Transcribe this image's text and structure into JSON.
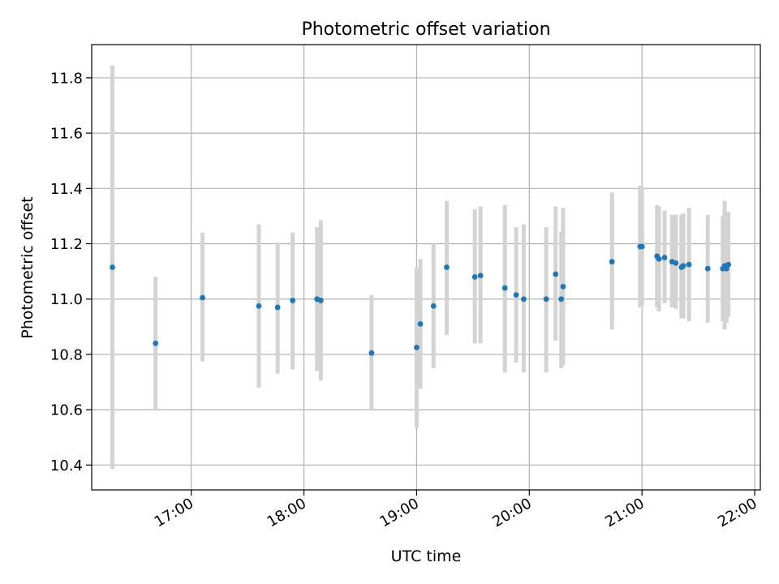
{
  "chart_data": {
    "type": "scatter",
    "title": "Photometric offset variation",
    "xlabel": "UTC time",
    "ylabel": "Photometric offset",
    "x_ticks": [
      "17:00",
      "18:00",
      "19:00",
      "20:00",
      "21:00",
      "22:00"
    ],
    "y_ticks": [
      "10.4",
      "10.6",
      "10.8",
      "11.0",
      "11.2",
      "11.4",
      "11.6",
      "11.8"
    ],
    "xlim": [
      "16:07",
      "22:03"
    ],
    "ylim": [
      10.31,
      11.92
    ],
    "grid": true,
    "point_color": "#1f77b4",
    "errorbar_color": "#d3d3d3",
    "points": [
      {
        "x": "16:18",
        "y": 11.115,
        "yerr_low": 10.385,
        "yerr_high": 11.845
      },
      {
        "x": "16:41",
        "y": 10.84,
        "yerr_low": 10.6,
        "yerr_high": 11.08
      },
      {
        "x": "17:06",
        "y": 11.005,
        "yerr_low": 10.775,
        "yerr_high": 11.24
      },
      {
        "x": "17:36",
        "y": 10.975,
        "yerr_low": 10.68,
        "yerr_high": 11.27
      },
      {
        "x": "17:46",
        "y": 10.97,
        "yerr_low": 10.73,
        "yerr_high": 11.205
      },
      {
        "x": "17:54",
        "y": 10.995,
        "yerr_low": 10.745,
        "yerr_high": 11.24
      },
      {
        "x": "18:07",
        "y": 11.0,
        "yerr_low": 10.74,
        "yerr_high": 11.26
      },
      {
        "x": "18:09",
        "y": 10.995,
        "yerr_low": 10.705,
        "yerr_high": 11.285
      },
      {
        "x": "18:36",
        "y": 10.805,
        "yerr_low": 10.6,
        "yerr_high": 11.015
      },
      {
        "x": "19:00",
        "y": 10.825,
        "yerr_low": 10.535,
        "yerr_high": 11.115
      },
      {
        "x": "19:02",
        "y": 10.91,
        "yerr_low": 10.675,
        "yerr_high": 11.145
      },
      {
        "x": "19:09",
        "y": 10.975,
        "yerr_low": 10.75,
        "yerr_high": 11.2
      },
      {
        "x": "19:16",
        "y": 11.115,
        "yerr_low": 10.87,
        "yerr_high": 11.355
      },
      {
        "x": "19:31",
        "y": 11.08,
        "yerr_low": 10.84,
        "yerr_high": 11.325
      },
      {
        "x": "19:34",
        "y": 11.085,
        "yerr_low": 10.84,
        "yerr_high": 11.335
      },
      {
        "x": "19:47",
        "y": 11.04,
        "yerr_low": 10.735,
        "yerr_high": 11.34
      },
      {
        "x": "19:53",
        "y": 11.015,
        "yerr_low": 10.77,
        "yerr_high": 11.26
      },
      {
        "x": "19:57",
        "y": 11.0,
        "yerr_low": 10.735,
        "yerr_high": 11.27
      },
      {
        "x": "20:09",
        "y": 11.0,
        "yerr_low": 10.735,
        "yerr_high": 11.26
      },
      {
        "x": "20:14",
        "y": 11.09,
        "yerr_low": 10.85,
        "yerr_high": 11.335
      },
      {
        "x": "20:17",
        "y": 11.0,
        "yerr_low": 10.75,
        "yerr_high": 11.245
      },
      {
        "x": "20:18",
        "y": 11.045,
        "yerr_low": 10.76,
        "yerr_high": 11.33
      },
      {
        "x": "20:44",
        "y": 11.135,
        "yerr_low": 10.89,
        "yerr_high": 11.385
      },
      {
        "x": "20:59",
        "y": 11.19,
        "yerr_low": 10.97,
        "yerr_high": 11.41
      },
      {
        "x": "21:00",
        "y": 11.19,
        "yerr_low": 10.975,
        "yerr_high": 11.405
      },
      {
        "x": "21:08",
        "y": 11.155,
        "yerr_low": 10.97,
        "yerr_high": 11.34
      },
      {
        "x": "21:09",
        "y": 11.145,
        "yerr_low": 10.955,
        "yerr_high": 11.335
      },
      {
        "x": "21:12",
        "y": 11.15,
        "yerr_low": 10.985,
        "yerr_high": 11.32
      },
      {
        "x": "21:16",
        "y": 11.135,
        "yerr_low": 10.97,
        "yerr_high": 11.305
      },
      {
        "x": "21:18",
        "y": 11.13,
        "yerr_low": 10.965,
        "yerr_high": 11.305
      },
      {
        "x": "21:21",
        "y": 11.115,
        "yerr_low": 10.93,
        "yerr_high": 11.305
      },
      {
        "x": "21:22",
        "y": 11.12,
        "yerr_low": 10.93,
        "yerr_high": 11.31
      },
      {
        "x": "21:25",
        "y": 11.125,
        "yerr_low": 10.92,
        "yerr_high": 11.33
      },
      {
        "x": "21:35",
        "y": 11.11,
        "yerr_low": 10.915,
        "yerr_high": 11.305
      },
      {
        "x": "21:43",
        "y": 11.11,
        "yerr_low": 10.92,
        "yerr_high": 11.3
      },
      {
        "x": "21:44",
        "y": 11.12,
        "yerr_low": 10.89,
        "yerr_high": 11.355
      },
      {
        "x": "21:45",
        "y": 11.11,
        "yerr_low": 10.915,
        "yerr_high": 11.305
      },
      {
        "x": "21:46",
        "y": 11.125,
        "yerr_low": 10.935,
        "yerr_high": 11.315
      }
    ]
  }
}
